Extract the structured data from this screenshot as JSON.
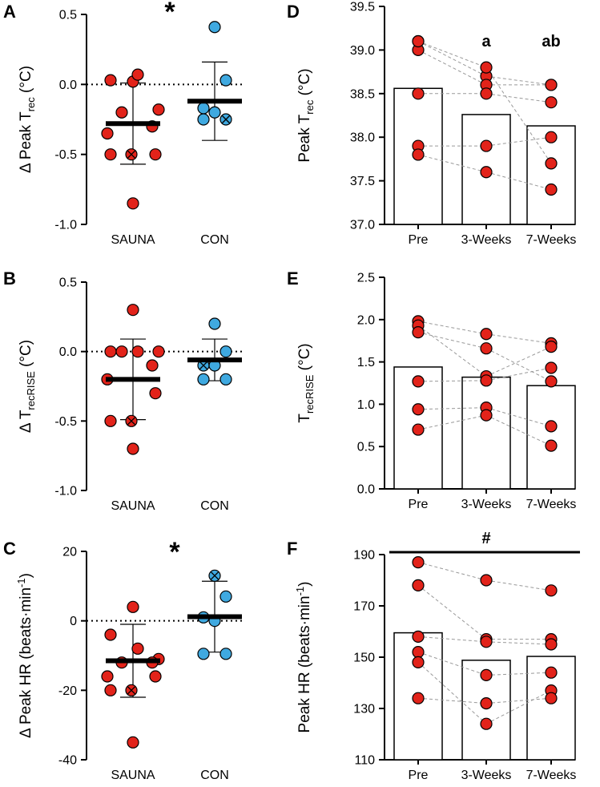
{
  "colors": {
    "sauna": "#e2231a",
    "con": "#3fa9e0",
    "bar_fill": "#ffffff",
    "connector": "#999999",
    "zero_line": "#000000"
  },
  "chart_data": [
    {
      "panel": "A",
      "type": "scatter",
      "ylabel_main": "Δ Peak T",
      "ylabel_sub": "rec",
      "ylabel_unit": " (°C)",
      "ylim": [
        -1.0,
        0.5
      ],
      "yticks": [
        "0.5",
        "0.0",
        "-0.5",
        "-1.0"
      ],
      "ytick_values": [
        0.5,
        0.0,
        -0.5,
        -1.0
      ],
      "categories": [
        "SAUNA",
        "CON"
      ],
      "annotation": "*",
      "groups": [
        {
          "name": "SAUNA",
          "color_key": "sauna",
          "mean": -0.28,
          "sd": 0.29,
          "points": [
            0.02,
            0.03,
            0.07,
            -0.18,
            -0.2,
            -0.3,
            -0.35,
            -0.5,
            -0.5,
            -0.5,
            -0.85
          ],
          "crossed_index": 8
        },
        {
          "name": "CON",
          "color_key": "con",
          "mean": -0.12,
          "sd": 0.28,
          "points": [
            0.41,
            0.03,
            -0.17,
            -0.2,
            -0.25,
            -0.25
          ],
          "crossed_index": 4
        }
      ]
    },
    {
      "panel": "B",
      "type": "scatter",
      "ylabel_main": "Δ T",
      "ylabel_sub": "recRISE",
      "ylabel_unit": " (°C)",
      "ylim": [
        -1.0,
        0.5
      ],
      "yticks": [
        "0.5",
        "0.0",
        "-0.5",
        "-1.0"
      ],
      "ytick_values": [
        0.5,
        0.0,
        -0.5,
        -1.0
      ],
      "categories": [
        "SAUNA",
        "CON"
      ],
      "annotation": "",
      "groups": [
        {
          "name": "SAUNA",
          "color_key": "sauna",
          "mean": -0.2,
          "sd": 0.29,
          "points": [
            0.3,
            0.0,
            0.0,
            0.0,
            0.0,
            -0.1,
            -0.2,
            -0.3,
            -0.5,
            -0.5,
            -0.7
          ],
          "crossed_index": 8
        },
        {
          "name": "CON",
          "color_key": "con",
          "mean": -0.06,
          "sd": 0.15,
          "points": [
            0.2,
            0.0,
            -0.1,
            -0.1,
            -0.2,
            -0.2
          ],
          "crossed_index": 2
        }
      ]
    },
    {
      "panel": "C",
      "type": "scatter",
      "ylabel_main": "Δ Peak HR (beats·min",
      "ylabel_sup": "-1",
      "ylabel_unit": ")",
      "ylim": [
        -40,
        20
      ],
      "yticks": [
        "20",
        "0",
        "-20",
        "-40"
      ],
      "ytick_values": [
        20,
        0,
        -20,
        -40
      ],
      "categories": [
        "SAUNA",
        "CON"
      ],
      "annotation": "*",
      "groups": [
        {
          "name": "SAUNA",
          "color_key": "sauna",
          "mean": -11.5,
          "sd": 10.5,
          "points": [
            4,
            -4,
            -8,
            -11,
            -12,
            -12,
            -16,
            -16,
            -20,
            -20,
            -35
          ],
          "crossed_index": 8
        },
        {
          "name": "CON",
          "color_key": "con",
          "mean": 1.2,
          "sd": 10.2,
          "points": [
            13,
            7,
            1,
            0,
            -9.5,
            -9.5
          ],
          "crossed_index": 0
        }
      ]
    },
    {
      "panel": "D",
      "type": "bar",
      "ylabel_main": "Peak T",
      "ylabel_sub": "rec",
      "ylabel_unit": " (°C)",
      "ylim": [
        37.0,
        39.5
      ],
      "yticks": [
        "39.5",
        "39.0",
        "38.5",
        "38.0",
        "37.5",
        "37.0"
      ],
      "ytick_values": [
        39.5,
        39.0,
        38.5,
        38.0,
        37.5,
        37.0
      ],
      "categories": [
        "Pre",
        "3-Weeks",
        "7-Weeks"
      ],
      "bar_values": [
        38.56,
        38.26,
        38.13
      ],
      "bar_labels": [
        "",
        "a",
        "ab"
      ],
      "subjects": [
        [
          39.1,
          38.7,
          38.6
        ],
        [
          39.0,
          38.6,
          38.6
        ],
        [
          38.5,
          38.5,
          38.4
        ],
        [
          37.9,
          37.9,
          38.0
        ],
        [
          37.8,
          37.6,
          37.4
        ],
        [
          39.1,
          38.8,
          37.7
        ]
      ]
    },
    {
      "panel": "E",
      "type": "bar",
      "ylabel_main": "T",
      "ylabel_sub": "recRISE",
      "ylabel_unit": " (°C)",
      "ylim": [
        0.0,
        2.5
      ],
      "yticks": [
        "2.5",
        "2.0",
        "1.5",
        "1.0",
        "0.5",
        "0.0"
      ],
      "ytick_values": [
        2.5,
        2.0,
        1.5,
        1.0,
        0.5,
        0.0
      ],
      "categories": [
        "Pre",
        "3-Weeks",
        "7-Weeks"
      ],
      "bar_values": [
        1.44,
        1.32,
        1.22
      ],
      "bar_labels": [
        "",
        "",
        ""
      ],
      "subjects": [
        [
          1.98,
          1.83,
          1.72
        ],
        [
          1.93,
          1.33,
          1.68
        ],
        [
          1.85,
          1.66,
          1.27
        ],
        [
          1.27,
          1.28,
          1.43
        ],
        [
          0.94,
          0.96,
          0.74
        ],
        [
          0.7,
          0.87,
          0.51
        ]
      ]
    },
    {
      "panel": "F",
      "type": "bar",
      "ylabel_main": "Peak HR (beats·min",
      "ylabel_sup": "-1",
      "ylabel_unit": ")",
      "ylim": [
        110,
        190
      ],
      "yticks": [
        "190",
        "170",
        "150",
        "130",
        "110"
      ],
      "ytick_values": [
        190,
        170,
        150,
        130,
        110
      ],
      "categories": [
        "Pre",
        "3-Weeks",
        "7-Weeks"
      ],
      "bar_values": [
        159.5,
        148.8,
        150.3
      ],
      "bar_labels": [
        "",
        "",
        ""
      ],
      "annotation": "#",
      "subjects": [
        [
          187,
          180,
          176
        ],
        [
          178,
          157,
          157
        ],
        [
          158,
          156,
          155
        ],
        [
          152,
          143,
          144
        ],
        [
          148,
          124,
          137
        ],
        [
          134,
          132,
          134
        ]
      ]
    }
  ]
}
